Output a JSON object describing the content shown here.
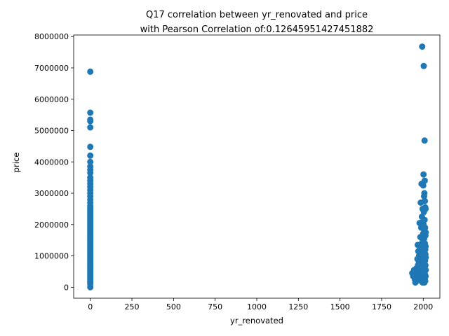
{
  "chart_data": {
    "type": "scatter",
    "title_line1": "Q17 correlation between yr_renovated and price",
    "title_line2": "with Pearson Correlation of:0.12645951427451882",
    "xlabel": "yr_renovated",
    "ylabel": "price",
    "xlim": [
      -100,
      2100
    ],
    "ylim": [
      -350000,
      8050000
    ],
    "x_ticks": [
      0,
      250,
      500,
      750,
      1000,
      1250,
      1500,
      1750,
      2000
    ],
    "x_tick_labels": [
      "0",
      "250",
      "500",
      "750",
      "1000",
      "1250",
      "1500",
      "1750",
      "2000"
    ],
    "y_ticks": [
      0,
      1000000,
      2000000,
      3000000,
      4000000,
      5000000,
      6000000,
      7000000,
      8000000
    ],
    "y_tick_labels": [
      "0",
      "1000000",
      "2000000",
      "3000000",
      "4000000",
      "5000000",
      "6000000",
      "7000000",
      "8000000"
    ],
    "grid": false,
    "marker_color": "#1f77b4",
    "series": [
      {
        "points": [
          [
            0,
            0
          ],
          [
            0,
            100000
          ],
          [
            0,
            150000
          ],
          [
            0,
            200000
          ],
          [
            0,
            250000
          ],
          [
            0,
            300000
          ],
          [
            0,
            350000
          ],
          [
            0,
            400000
          ],
          [
            0,
            450000
          ],
          [
            0,
            500000
          ],
          [
            0,
            550000
          ],
          [
            0,
            600000
          ],
          [
            0,
            650000
          ],
          [
            0,
            700000
          ],
          [
            0,
            750000
          ],
          [
            0,
            800000
          ],
          [
            0,
            850000
          ],
          [
            0,
            900000
          ],
          [
            0,
            950000
          ],
          [
            0,
            1000000
          ],
          [
            0,
            1050000
          ],
          [
            0,
            1100000
          ],
          [
            0,
            1150000
          ],
          [
            0,
            1200000
          ],
          [
            0,
            1250000
          ],
          [
            0,
            1300000
          ],
          [
            0,
            1350000
          ],
          [
            0,
            1400000
          ],
          [
            0,
            1450000
          ],
          [
            0,
            1500000
          ],
          [
            0,
            1550000
          ],
          [
            0,
            1600000
          ],
          [
            0,
            1650000
          ],
          [
            0,
            1700000
          ],
          [
            0,
            1750000
          ],
          [
            0,
            1800000
          ],
          [
            0,
            1850000
          ],
          [
            0,
            1900000
          ],
          [
            0,
            1950000
          ],
          [
            0,
            2000000
          ],
          [
            0,
            2050000
          ],
          [
            0,
            2100000
          ],
          [
            0,
            2150000
          ],
          [
            0,
            2200000
          ],
          [
            0,
            2250000
          ],
          [
            0,
            2300000
          ],
          [
            0,
            2350000
          ],
          [
            0,
            2400000
          ],
          [
            0,
            2450000
          ],
          [
            0,
            2500000
          ],
          [
            0,
            2550000
          ],
          [
            0,
            2600000
          ],
          [
            0,
            2700000
          ],
          [
            0,
            2800000
          ],
          [
            0,
            2900000
          ],
          [
            0,
            3000000
          ],
          [
            0,
            3100000
          ],
          [
            0,
            3200000
          ],
          [
            0,
            3300000
          ],
          [
            0,
            3400000
          ],
          [
            0,
            3500000
          ],
          [
            0,
            3650000
          ],
          [
            0,
            3750000
          ],
          [
            0,
            3850000
          ],
          [
            0,
            4000000
          ],
          [
            0,
            4200000
          ],
          [
            0,
            4480000
          ],
          [
            0,
            5100000
          ],
          [
            0,
            5300000
          ],
          [
            0,
            5350000
          ],
          [
            0,
            5570000
          ],
          [
            0,
            6880000
          ],
          [
            1934,
            450000
          ],
          [
            1940,
            350000
          ],
          [
            1945,
            550000
          ],
          [
            1950,
            250000
          ],
          [
            1953,
            150000
          ],
          [
            1955,
            400000
          ],
          [
            1958,
            600000
          ],
          [
            1960,
            200000
          ],
          [
            1962,
            300000
          ],
          [
            1963,
            500000
          ],
          [
            1965,
            900000
          ],
          [
            1967,
            1350000
          ],
          [
            1968,
            700000
          ],
          [
            1970,
            1150000
          ],
          [
            1970,
            400000
          ],
          [
            1972,
            250000
          ],
          [
            1974,
            800000
          ],
          [
            1975,
            1000000
          ],
          [
            1977,
            600000
          ],
          [
            1978,
            2050000
          ],
          [
            1979,
            350000
          ],
          [
            1980,
            1200000
          ],
          [
            1981,
            500000
          ],
          [
            1982,
            900000
          ],
          [
            1983,
            1600000
          ],
          [
            1984,
            300000
          ],
          [
            1985,
            2700000
          ],
          [
            1986,
            1100000
          ],
          [
            1987,
            700000
          ],
          [
            1988,
            1900000
          ],
          [
            1989,
            200000
          ],
          [
            1990,
            3300000
          ],
          [
            1990,
            1300000
          ],
          [
            1991,
            450000
          ],
          [
            1992,
            2250000
          ],
          [
            1993,
            1000000
          ],
          [
            1994,
            7680000
          ],
          [
            1994,
            650000
          ],
          [
            1995,
            1450000
          ],
          [
            1996,
            2500000
          ],
          [
            1996,
            150000
          ],
          [
            1997,
            850000
          ],
          [
            1998,
            2100000
          ],
          [
            1999,
            1700000
          ],
          [
            1999,
            400000
          ],
          [
            2000,
            3250000
          ],
          [
            2000,
            1250000
          ],
          [
            2001,
            600000
          ],
          [
            2002,
            3600000
          ],
          [
            2002,
            2000000
          ],
          [
            2003,
            7060000
          ],
          [
            2003,
            950000
          ],
          [
            2004,
            2400000
          ],
          [
            2004,
            300000
          ],
          [
            2005,
            2900000
          ],
          [
            2005,
            1550000
          ],
          [
            2006,
            1800000
          ],
          [
            2006,
            750000
          ],
          [
            2007,
            3000000
          ],
          [
            2007,
            1150000
          ],
          [
            2008,
            4680000
          ],
          [
            2008,
            2150000
          ],
          [
            2009,
            3400000
          ],
          [
            2009,
            500000
          ],
          [
            2010,
            2750000
          ],
          [
            2010,
            1400000
          ],
          [
            2011,
            1900000
          ],
          [
            2011,
            850000
          ],
          [
            2012,
            2550000
          ],
          [
            2012,
            200000
          ],
          [
            2013,
            1650000
          ],
          [
            2013,
            1050000
          ],
          [
            2014,
            1300000
          ],
          [
            2014,
            350000
          ],
          [
            2014,
            2500000
          ],
          [
            2015,
            950000
          ],
          [
            2015,
            550000
          ],
          [
            2015,
            1750000
          ],
          [
            2013,
            700000
          ],
          [
            2012,
            1200000
          ],
          [
            2011,
            400000
          ],
          [
            2010,
            250000
          ],
          [
            2009,
            1000000
          ],
          [
            2008,
            600000
          ],
          [
            2007,
            150000
          ],
          [
            2006,
            1400000
          ],
          [
            2005,
            300000
          ],
          [
            2004,
            800000
          ],
          [
            2003,
            450000
          ],
          [
            2002,
            1100000
          ],
          [
            2001,
            250000
          ],
          [
            2000,
            700000
          ],
          [
            1999,
            950000
          ],
          [
            1998,
            500000
          ],
          [
            1997,
            1300000
          ],
          [
            1996,
            600000
          ],
          [
            1995,
            350000
          ],
          [
            1994,
            1050000
          ]
        ]
      }
    ]
  }
}
